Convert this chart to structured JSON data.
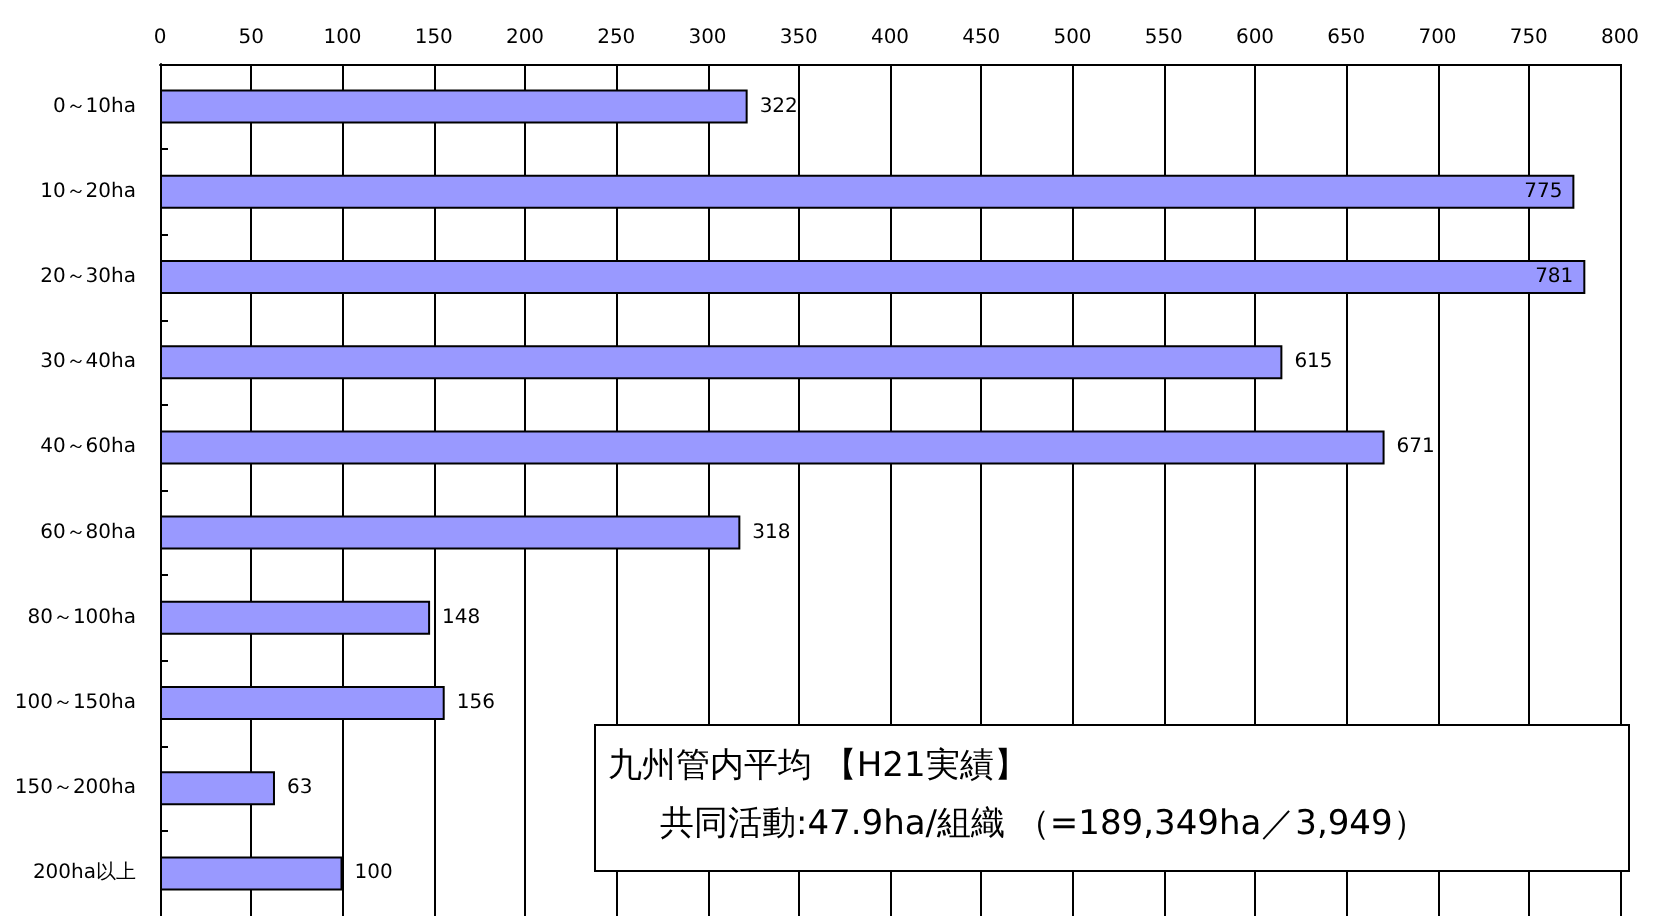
{
  "chart_data": {
    "type": "bar",
    "orientation": "horizontal",
    "categories": [
      "0～10ha",
      "10～20ha",
      "20～30ha",
      "30～40ha",
      "40～60ha",
      "60～80ha",
      "80～100ha",
      "100～150ha",
      "150～200ha",
      "200ha以上"
    ],
    "values": [
      322,
      775,
      781,
      615,
      671,
      318,
      148,
      156,
      63,
      100
    ],
    "color": "#9999ff",
    "xlim": [
      0,
      800
    ],
    "xticks": [
      0,
      50,
      100,
      150,
      200,
      250,
      300,
      350,
      400,
      450,
      500,
      550,
      600,
      650,
      700,
      750,
      800
    ],
    "grid": "x",
    "data_labels": true,
    "annotations": [
      "九州管内平均 【H21実績】",
      "共同活動:47.9ha/組織 （=189,349ha／3,949）"
    ]
  }
}
